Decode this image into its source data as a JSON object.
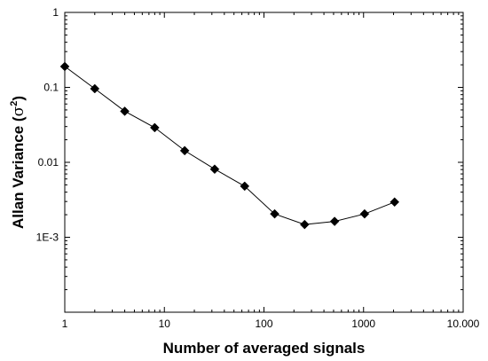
{
  "chart_data": {
    "type": "scatter",
    "xlabel": "Number of  averaged signals",
    "ylabel_main": "Allan Variance (",
    "ylabel_sigma": "σ",
    "ylabel_exp": "2",
    "ylabel_end": ")",
    "x_scale": "log",
    "y_scale": "log",
    "xlim": [
      1,
      10000
    ],
    "ylim": [
      0.0001,
      1
    ],
    "x_ticks": [
      1,
      10,
      100,
      1000,
      10000
    ],
    "x_tick_labels": [
      "1",
      "10",
      "100",
      "1000",
      "10.000"
    ],
    "y_ticks": [
      0.001,
      0.01,
      0.1,
      1
    ],
    "y_tick_labels": [
      "1E-3",
      "0.01",
      "0.1",
      "1"
    ],
    "grid": false,
    "marker": "diamond",
    "line_style": "connected",
    "series": [
      {
        "x": [
          1,
          2,
          4,
          8,
          16,
          32,
          64,
          128,
          256,
          512,
          1024,
          2048
        ],
        "y": [
          0.19,
          0.096,
          0.048,
          0.029,
          0.0143,
          0.0081,
          0.0048,
          0.00205,
          0.00148,
          0.00163,
          0.00205,
          0.00295
        ]
      }
    ]
  }
}
